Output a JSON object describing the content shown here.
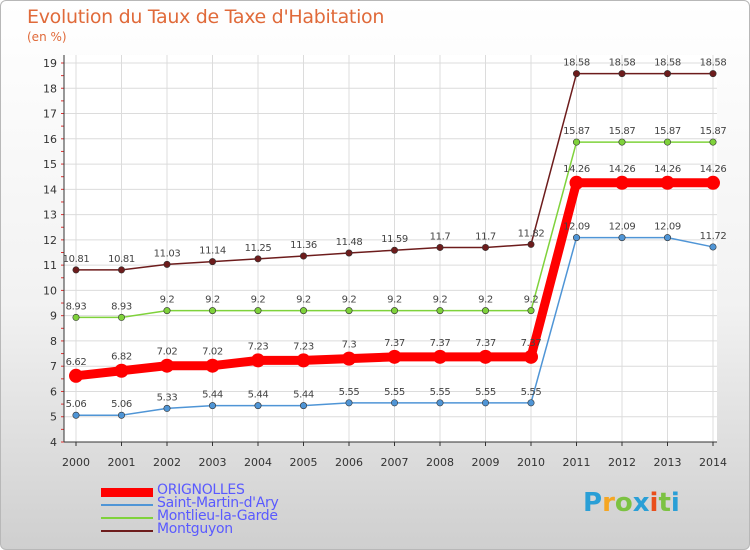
{
  "title": "Evolution du Taux de Taxe d'Habitation",
  "unit_label": "(en %)",
  "logo": {
    "letters": [
      "P",
      "r",
      "o",
      "x",
      "i",
      "t",
      "i"
    ],
    "colors": [
      "#2a9fd6",
      "#f5a623",
      "#7cc242",
      "#2a9fd6",
      "#e94e1b",
      "#7cc242",
      "#2a9fd6"
    ]
  },
  "chart_data": {
    "type": "line",
    "x": [
      "2000",
      "2001",
      "2002",
      "2003",
      "2004",
      "2005",
      "2006",
      "2007",
      "2008",
      "2009",
      "2010",
      "2011",
      "2012",
      "2013",
      "2014"
    ],
    "ylim": [
      4,
      19
    ],
    "yticks": [
      "4",
      "5",
      "6",
      "7",
      "8",
      "9",
      "10",
      "11",
      "12",
      "13",
      "14",
      "15",
      "16",
      "17",
      "18",
      "19"
    ],
    "grid": true,
    "legend_position": "bottom-left",
    "series": [
      {
        "name": "ORIGNOLLES",
        "color": "#ff0000",
        "emphasis": true,
        "values": [
          6.62,
          6.82,
          7.02,
          7.02,
          7.23,
          7.23,
          7.3,
          7.37,
          7.37,
          7.37,
          7.37,
          14.26,
          14.26,
          14.26,
          14.26
        ],
        "labels": [
          "6.62",
          "6.82",
          "7.02",
          "7.02",
          "7.23",
          "7.23",
          "7.3",
          "7.37",
          "7.37",
          "7.37",
          "7.37",
          "14.26",
          "14.26",
          "14.26",
          "14.26"
        ]
      },
      {
        "name": "Saint-Martin-d'Ary",
        "color": "#4f95d6",
        "values": [
          5.06,
          5.06,
          5.33,
          5.44,
          5.44,
          5.44,
          5.55,
          5.55,
          5.55,
          5.55,
          5.55,
          12.09,
          12.09,
          12.09,
          11.72
        ],
        "labels": [
          "5.06",
          "5.06",
          "5.33",
          "5.44",
          "5.44",
          "5.44",
          "5.55",
          "5.55",
          "5.55",
          "5.55",
          "5.55",
          "12.09",
          "12.09",
          "12.09",
          "11.72"
        ]
      },
      {
        "name": "Montlieu-la-Garde",
        "color": "#7fd23b",
        "values": [
          8.93,
          8.93,
          9.2,
          9.2,
          9.2,
          9.2,
          9.2,
          9.2,
          9.2,
          9.2,
          9.2,
          15.87,
          15.87,
          15.87,
          15.87
        ],
        "labels": [
          "8.93",
          "8.93",
          "9.2",
          "9.2",
          "9.2",
          "9.2",
          "9.2",
          "9.2",
          "9.2",
          "9.2",
          "9.2",
          "15.87",
          "15.87",
          "15.87",
          "15.87"
        ]
      },
      {
        "name": "Montguyon",
        "color": "#6d1c1c",
        "values": [
          10.81,
          10.81,
          11.03,
          11.14,
          11.25,
          11.36,
          11.48,
          11.59,
          11.7,
          11.7,
          11.82,
          18.58,
          18.58,
          18.58,
          18.58
        ],
        "labels": [
          "10.81",
          "10.81",
          "11.03",
          "11.14",
          "11.25",
          "11.36",
          "11.48",
          "11.59",
          "11.7",
          "11.7",
          "11.82",
          "18.58",
          "18.58",
          "18.58",
          "18.58"
        ]
      }
    ]
  }
}
